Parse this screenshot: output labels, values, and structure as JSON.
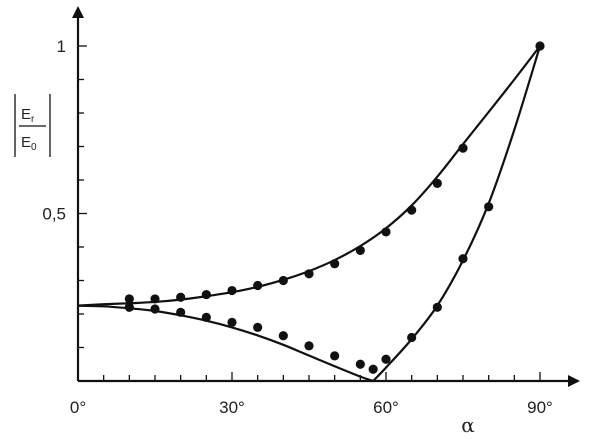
{
  "chart_data": {
    "type": "scatter",
    "title": "",
    "xlabel": "α",
    "ylabel": {
      "numerator": "E",
      "numerator_sub": "r",
      "denominator": "E",
      "denominator_sub": "0"
    },
    "xlim": [
      0,
      95
    ],
    "ylim": [
      0,
      1.05
    ],
    "x_ticks": [
      {
        "value": 0,
        "label": "0°"
      },
      {
        "value": 30,
        "label": "30°"
      },
      {
        "value": 60,
        "label": "60°"
      },
      {
        "value": 90,
        "label": "90°"
      }
    ],
    "y_ticks": [
      {
        "value": 0.5,
        "label": "0,5"
      },
      {
        "value": 1,
        "label": "1"
      }
    ],
    "grid": false,
    "legend": "none",
    "series": [
      {
        "kind": "curve",
        "x": [
          0,
          5,
          10,
          15,
          20,
          25,
          30,
          35,
          40,
          45,
          50,
          55,
          60,
          65,
          70,
          75,
          80,
          85,
          90
        ],
        "y": [
          0.225,
          0.229,
          0.232,
          0.236,
          0.243,
          0.253,
          0.265,
          0.281,
          0.302,
          0.328,
          0.361,
          0.403,
          0.456,
          0.524,
          0.61,
          0.707,
          0.803,
          0.9,
          1.0
        ]
      },
      {
        "kind": "curve",
        "x": [
          0,
          5,
          10,
          15,
          20,
          25,
          30,
          35,
          40,
          45,
          50,
          55,
          57.5,
          60,
          65,
          70,
          75,
          80,
          85,
          90
        ],
        "y": [
          0.225,
          0.223,
          0.217,
          0.209,
          0.196,
          0.18,
          0.16,
          0.136,
          0.108,
          0.076,
          0.044,
          0.013,
          0.0,
          0.04,
          0.125,
          0.225,
          0.36,
          0.53,
          0.75,
          1.0
        ]
      },
      {
        "kind": "points",
        "x": [
          10,
          15,
          20,
          25,
          30,
          35,
          40,
          45,
          50,
          55,
          60,
          65,
          70,
          75,
          90
        ],
        "y": [
          0.245,
          0.245,
          0.25,
          0.258,
          0.27,
          0.285,
          0.3,
          0.32,
          0.35,
          0.39,
          0.445,
          0.51,
          0.59,
          0.695,
          1.0
        ]
      },
      {
        "kind": "points",
        "x": [
          10,
          15,
          20,
          25,
          30,
          35,
          40,
          45,
          50,
          55,
          57.5,
          60,
          65,
          70,
          75,
          80
        ],
        "y": [
          0.22,
          0.215,
          0.205,
          0.19,
          0.175,
          0.16,
          0.135,
          0.105,
          0.075,
          0.05,
          0.035,
          0.065,
          0.13,
          0.22,
          0.365,
          0.52
        ]
      }
    ]
  }
}
